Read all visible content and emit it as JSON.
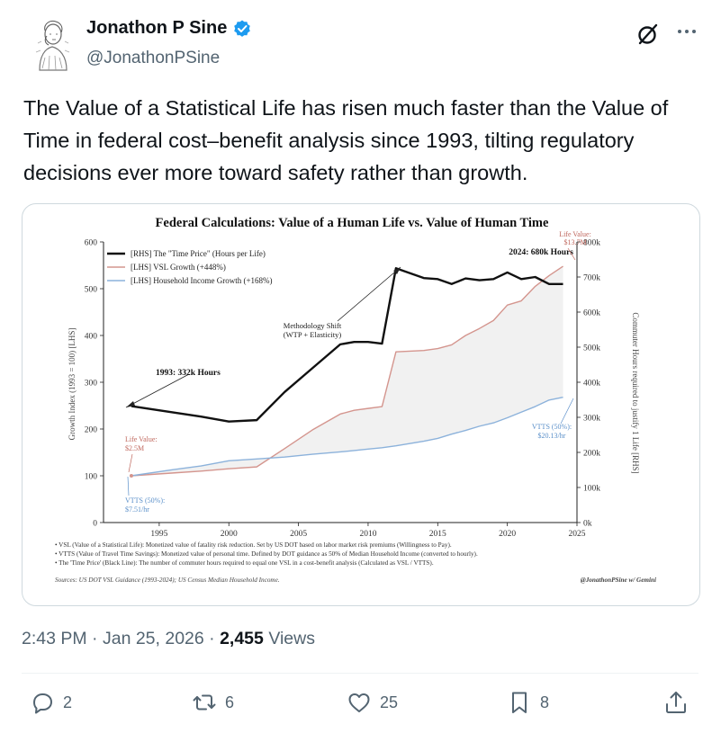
{
  "author": {
    "name": "Jonathon P Sine",
    "handle": "@JonathonPSine",
    "verified": true,
    "avatar_icon": "engraving-portrait-avatar"
  },
  "tweet": {
    "text": "The Value of a Statistical Life has risen much faster than the Value of Time in federal cost–benefit analysis since 1993, tilting regulatory decisions ever more toward safety rather than growth.",
    "time": "2:43 PM",
    "date": "Jan 25, 2026",
    "views_count": "2,455",
    "views_label": "Views",
    "separator": "·"
  },
  "actions": {
    "replies": "2",
    "reposts": "6",
    "likes": "25",
    "bookmarks": "8"
  },
  "colors": {
    "black_line": "#111111",
    "vsl_line": "#d4958e",
    "income_line": "#8cb2db",
    "fill": "#eeeeee",
    "accent": "#1d9bf0"
  },
  "chart_data": {
    "type": "line",
    "title": "Federal Calculations: Value of a Human Life vs. Value of Human Time",
    "xlabel": "",
    "ylabel_left": "Growth Index (1993 = 100) [LHS]",
    "ylabel_right": "Commuter Hours required to justify 1 Life [RHS]",
    "xlim": [
      1991,
      2025
    ],
    "ylim_left": [
      0,
      600
    ],
    "ylim_right": [
      0,
      800000
    ],
    "x_ticks": [
      "1995",
      "2000",
      "2005",
      "2010",
      "2015",
      "2020",
      "2025"
    ],
    "y_ticks_left": [
      "0",
      "100",
      "200",
      "300",
      "400",
      "500",
      "600"
    ],
    "y_ticks_right": [
      "0k",
      "100k",
      "200k",
      "300k",
      "400k",
      "500k",
      "600k",
      "700k",
      "800k"
    ],
    "grid": false,
    "legend_position": "top-left",
    "series": [
      {
        "name": "[RHS] The \"Time Price\" (Hours per Life)",
        "axis": "right",
        "x": [
          1993,
          1996,
          1998,
          2000,
          2002,
          2004,
          2006,
          2008,
          2009,
          2010,
          2011,
          2012,
          2014,
          2015,
          2016,
          2017,
          2018,
          2019,
          2020,
          2021,
          2022,
          2023,
          2024
        ],
        "values": [
          332000,
          314000,
          302000,
          288000,
          292000,
          372000,
          440000,
          508000,
          515000,
          515000,
          510000,
          725000,
          697000,
          694000,
          680000,
          696000,
          691000,
          694000,
          713000,
          694000,
          700000,
          680000,
          680000
        ]
      },
      {
        "name": "[LHS] VSL Growth (+448%)",
        "axis": "left",
        "x": [
          1993,
          1996,
          1998,
          2000,
          2002,
          2004,
          2006,
          2008,
          2009,
          2010,
          2011,
          2012,
          2014,
          2015,
          2016,
          2017,
          2018,
          2019,
          2020,
          2021,
          2022,
          2023,
          2024
        ],
        "values": [
          100,
          106,
          110,
          115,
          119,
          158,
          198,
          232,
          240,
          244,
          248,
          365,
          368,
          372,
          380,
          400,
          415,
          432,
          465,
          474,
          505,
          528,
          548
        ]
      },
      {
        "name": "[LHS] Household Income Growth (+168%)",
        "axis": "left",
        "x": [
          1993,
          1996,
          1998,
          2000,
          2002,
          2004,
          2006,
          2008,
          2009,
          2010,
          2011,
          2012,
          2014,
          2015,
          2016,
          2017,
          2018,
          2019,
          2020,
          2021,
          2022,
          2023,
          2024
        ],
        "values": [
          100,
          113,
          121,
          132,
          136,
          140,
          146,
          151,
          154,
          157,
          160,
          164,
          174,
          180,
          189,
          197,
          206,
          213,
          224,
          236,
          248,
          262,
          268
        ]
      }
    ],
    "annotations": {
      "start_hours": "1993: 332k Hours",
      "end_hours": "2024: 680k Hours",
      "method_shift_1": "Methodology Shift",
      "method_shift_2": "(WTP + Elasticity)",
      "life_start_1": "Life Value:",
      "life_start_2": "$2.5M",
      "life_end_1": "Life Value:",
      "life_end_2": "$13.7M",
      "vtts_start_1": "VTTS (50%):",
      "vtts_start_2": "$7.51/hr",
      "vtts_end_1": "VTTS (50%):",
      "vtts_end_2": "$20.13/hr"
    },
    "notes": [
      "• VSL (Value of a Statistical Life): Monetized value of fatality risk reduction. Set by US DOT based on labor market risk premiums (Willingness to Pay).",
      "• VTTS (Value of Travel Time Savings): Monetized value of personal time. Defined by DOT guidance as 50% of Median Household Income (converted to hourly).",
      "• The 'Time Price' (Black Line): The number of commuter hours required to equal one VSL in a cost-benefit analysis (Calculated as VSL / VTTS)."
    ],
    "source": "Sources: US DOT VSL Guidance (1993-2024); US Census Median Household Income.",
    "credit": "@JonathonPSine w/ Gemini"
  }
}
